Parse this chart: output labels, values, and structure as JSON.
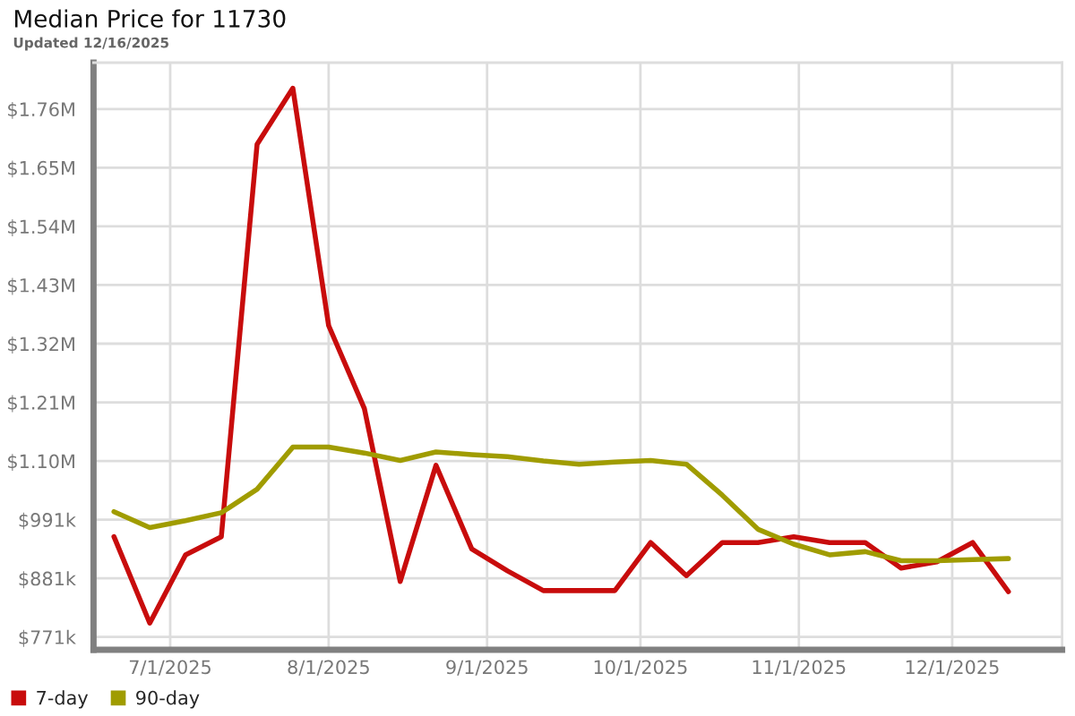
{
  "chart_data": {
    "type": "line",
    "title": "Median Price for 11730",
    "subtitle": "Updated 12/16/2025",
    "x": [
      "2025-06-20",
      "2025-06-27",
      "2025-07-04",
      "2025-07-11",
      "2025-07-18",
      "2025-07-25",
      "2025-08-01",
      "2025-08-08",
      "2025-08-15",
      "2025-08-22",
      "2025-08-29",
      "2025-09-05",
      "2025-09-12",
      "2025-09-19",
      "2025-09-26",
      "2025-10-03",
      "2025-10-10",
      "2025-10-17",
      "2025-10-24",
      "2025-10-31",
      "2025-11-07",
      "2025-11-14",
      "2025-11-21",
      "2025-11-28",
      "2025-12-05",
      "2025-12-12"
    ],
    "series": [
      {
        "name": "7-day",
        "color": "#c80c0c",
        "values": [
          959000,
          797000,
          925000,
          959000,
          1695000,
          1800000,
          1355000,
          1199000,
          875000,
          1093000,
          936000,
          895000,
          858000,
          858000,
          858000,
          948000,
          886000,
          948000,
          948000,
          959000,
          948000,
          948000,
          900000,
          912000,
          948000,
          856000
        ]
      },
      {
        "name": "90-day",
        "color": "#a09c00",
        "values": [
          1006000,
          976000,
          989000,
          1004000,
          1048000,
          1127000,
          1127000,
          1116000,
          1102000,
          1118000,
          1113000,
          1109000,
          1101000,
          1095000,
          1099000,
          1102000,
          1095000,
          1037000,
          973000,
          945000,
          925000,
          931000,
          914000,
          914000,
          916000,
          918000
        ]
      }
    ],
    "xlim": [
      "2025-06-16",
      "2025-12-22T12:00"
    ],
    "xticks": [
      {
        "value": "2025-07-01",
        "label": "7/1/2025"
      },
      {
        "value": "2025-08-01",
        "label": "8/1/2025"
      },
      {
        "value": "2025-09-01",
        "label": "9/1/2025"
      },
      {
        "value": "2025-10-01",
        "label": "10/1/2025"
      },
      {
        "value": "2025-11-01",
        "label": "11/1/2025"
      },
      {
        "value": "2025-12-01",
        "label": "12/1/2025"
      }
    ],
    "ylim": [
      747000,
      1848000
    ],
    "yticks": [
      {
        "value": 771000,
        "label": "$771k"
      },
      {
        "value": 881000,
        "label": "$881k"
      },
      {
        "value": 991000,
        "label": "$991k"
      },
      {
        "value": 1101000,
        "label": "$1.10M"
      },
      {
        "value": 1211000,
        "label": "$1.21M"
      },
      {
        "value": 1321000,
        "label": "$1.32M"
      },
      {
        "value": 1431000,
        "label": "$1.43M"
      },
      {
        "value": 1541000,
        "label": "$1.54M"
      },
      {
        "value": 1651000,
        "label": "$1.65M"
      },
      {
        "value": 1761000,
        "label": "$1.76M"
      }
    ],
    "grid": true,
    "legend": "bottom"
  }
}
